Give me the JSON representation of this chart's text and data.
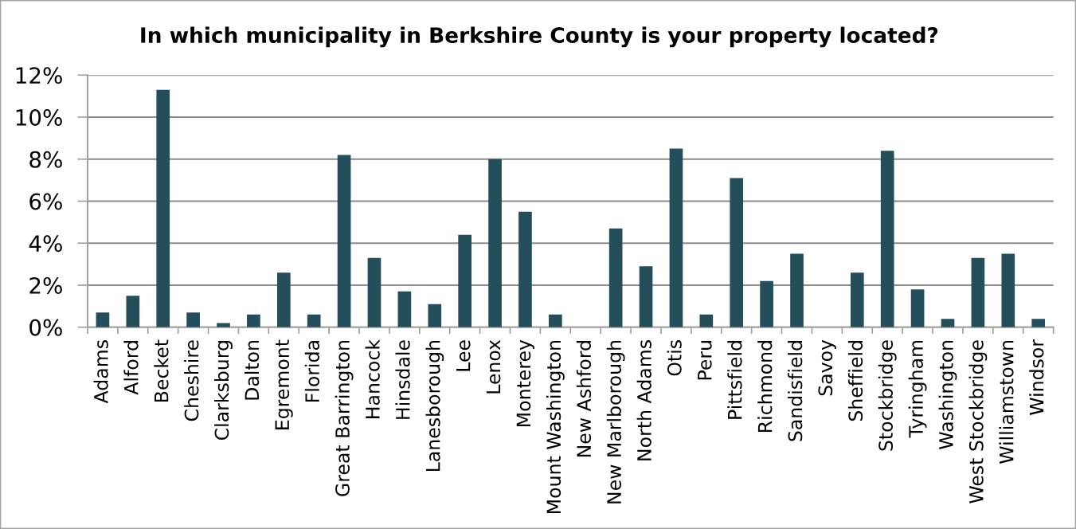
{
  "chart_data": {
    "type": "bar",
    "title": "In which municipality in Berkshire County is your property located?",
    "categories": [
      "Adams",
      "Alford",
      "Becket",
      "Cheshire",
      "Clarksburg",
      "Dalton",
      "Egremont",
      "Florida",
      "Great Barrington",
      "Hancock",
      "Hinsdale",
      "Lanesborough",
      "Lee",
      "Lenox",
      "Monterey",
      "Mount Washington",
      "New Ashford",
      "New Marlborough",
      "North Adams",
      "Otis",
      "Peru",
      "Pittsfield",
      "Richmond",
      "Sandisfield",
      "Savoy",
      "Sheffield",
      "Stockbridge",
      "Tyringham",
      "Washington",
      "West Stockbridge",
      "Williamstown",
      "Windsor"
    ],
    "values": [
      0.7,
      1.5,
      11.3,
      0.7,
      0.2,
      0.6,
      2.6,
      0.6,
      8.2,
      3.3,
      1.7,
      1.1,
      4.4,
      8.0,
      5.5,
      0.6,
      0,
      4.7,
      2.9,
      8.5,
      0.6,
      7.1,
      2.2,
      3.5,
      0,
      2.6,
      8.4,
      1.8,
      0.4,
      3.3,
      3.5,
      0.4
    ],
    "color": "#254e5b",
    "ylim": [
      0,
      12
    ],
    "yticks": [
      {
        "value": 0,
        "label": "0%"
      },
      {
        "value": 2,
        "label": "2%"
      },
      {
        "value": 4,
        "label": "4%"
      },
      {
        "value": 6,
        "label": "6%"
      },
      {
        "value": 8,
        "label": "8%"
      },
      {
        "value": 10,
        "label": "10%"
      },
      {
        "value": 12,
        "label": "12%"
      }
    ],
    "grid": "y"
  }
}
